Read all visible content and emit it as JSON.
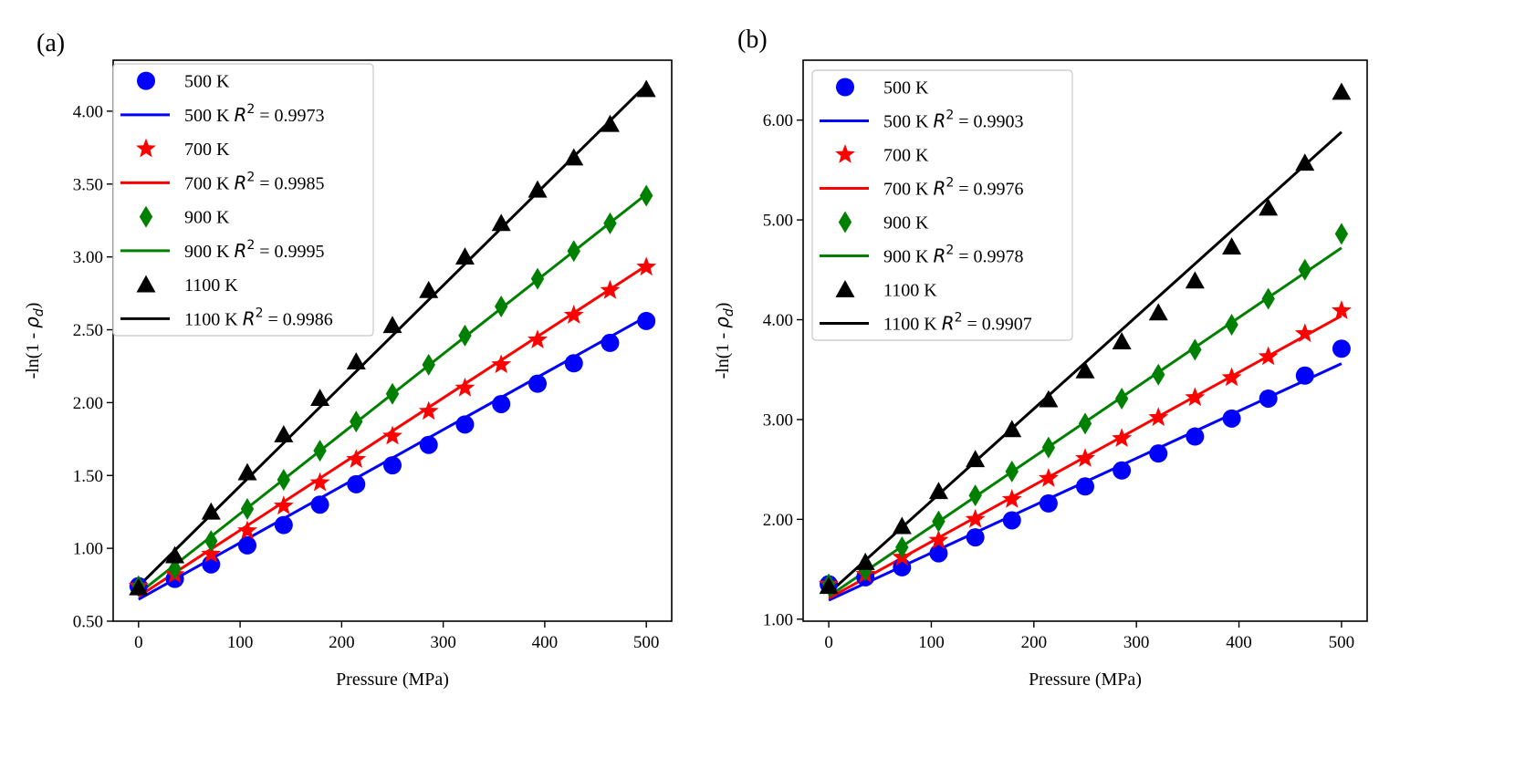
{
  "colors": {
    "500 K": "#0000ff",
    "700 K": "#ff0000",
    "900 K": "#008000",
    "1100 K": "#000000"
  },
  "chart_data": [
    {
      "type": "scatter",
      "panel_label": "(a)",
      "xlabel": "Pressure (MPa)",
      "ylabel": "-ln(1 - ρd)",
      "ylabel_main": "-ln(1 - ",
      "ylabel_rho": "ρ",
      "ylabel_sub": "d",
      "ylabel_close": ")",
      "xlim": [
        -25,
        525
      ],
      "ylim": [
        0.5,
        4.35
      ],
      "xticks": [
        0,
        100,
        200,
        300,
        400,
        500
      ],
      "xtick_labels": [
        "0",
        "100",
        "200",
        "300",
        "400",
        "500"
      ],
      "yticks": [
        0.5,
        1.0,
        1.5,
        2.0,
        2.5,
        3.0,
        3.5,
        4.0
      ],
      "ytick_labels": [
        "0.50",
        "1.00",
        "1.50",
        "2.00",
        "2.50",
        "3.00",
        "3.50",
        "4.00"
      ],
      "legend_position": "upper-left",
      "x": [
        0,
        35.7,
        71.4,
        107.1,
        142.9,
        178.6,
        214.3,
        250,
        285.7,
        321.4,
        357.1,
        392.9,
        428.6,
        464.3,
        500
      ],
      "series": [
        {
          "name": "500 K",
          "marker": "circle",
          "fit_label_prefix": "500 K ",
          "r2_text": " = 0.9973",
          "values": [
            0.74,
            0.79,
            0.89,
            1.02,
            1.16,
            1.3,
            1.44,
            1.57,
            1.71,
            1.85,
            1.99,
            2.13,
            2.27,
            2.41,
            2.56
          ],
          "fit_line": [
            [
              0,
              0.65
            ],
            [
              500,
              2.59
            ]
          ]
        },
        {
          "name": "700 K",
          "marker": "star",
          "fit_label_prefix": "700 K ",
          "r2_text": " = 0.9985",
          "values": [
            0.74,
            0.82,
            0.96,
            1.12,
            1.29,
            1.45,
            1.61,
            1.77,
            1.94,
            2.1,
            2.26,
            2.43,
            2.6,
            2.77,
            2.93
          ],
          "fit_line": [
            [
              0,
              0.67
            ],
            [
              500,
              2.94
            ]
          ]
        },
        {
          "name": "900 K",
          "marker": "diamond",
          "fit_label_prefix": "900 K ",
          "r2_text": " = 0.9995",
          "values": [
            0.74,
            0.86,
            1.05,
            1.27,
            1.47,
            1.67,
            1.87,
            2.06,
            2.26,
            2.46,
            2.66,
            2.85,
            3.04,
            3.23,
            3.42
          ],
          "fit_line": [
            [
              0,
              0.69
            ],
            [
              500,
              3.43
            ]
          ]
        },
        {
          "name": "1100 K",
          "marker": "triangle",
          "fit_label_prefix": "1100 K ",
          "r2_text": " = 0.9986",
          "values": [
            0.73,
            0.95,
            1.25,
            1.52,
            1.78,
            2.03,
            2.28,
            2.53,
            2.77,
            3.0,
            3.23,
            3.46,
            3.68,
            3.91,
            4.15
          ],
          "fit_line": [
            [
              0,
              0.74
            ],
            [
              500,
              4.18
            ]
          ]
        }
      ]
    },
    {
      "type": "scatter",
      "panel_label": "(b)",
      "xlabel": "Pressure (MPa)",
      "ylabel": "-ln(1 - ρd)",
      "ylabel_main": "-ln(1 - ",
      "ylabel_rho": "ρ",
      "ylabel_sub": "d",
      "ylabel_close": ")",
      "xlim": [
        -25,
        525
      ],
      "ylim": [
        0.98,
        6.6
      ],
      "xticks": [
        0,
        100,
        200,
        300,
        400,
        500
      ],
      "xtick_labels": [
        "0",
        "100",
        "200",
        "300",
        "400",
        "500"
      ],
      "yticks": [
        1.0,
        2.0,
        3.0,
        4.0,
        5.0,
        6.0
      ],
      "ytick_labels": [
        "1.00",
        "2.00",
        "3.00",
        "4.00",
        "5.00",
        "6.00"
      ],
      "legend_position": "upper-left",
      "x": [
        0,
        35.7,
        71.4,
        107.1,
        142.9,
        178.6,
        214.3,
        250,
        285.7,
        321.4,
        357.1,
        392.9,
        428.6,
        464.3,
        500
      ],
      "series": [
        {
          "name": "500 K",
          "marker": "circle",
          "fit_label_prefix": "500 K ",
          "r2_text": " = 0.9903",
          "values": [
            1.35,
            1.42,
            1.52,
            1.66,
            1.82,
            1.99,
            2.16,
            2.33,
            2.49,
            2.66,
            2.83,
            3.01,
            3.21,
            3.44,
            3.71
          ],
          "fit_line": [
            [
              0,
              1.19
            ],
            [
              500,
              3.56
            ]
          ]
        },
        {
          "name": "700 K",
          "marker": "star",
          "fit_label_prefix": "700 K ",
          "r2_text": " = 0.9976",
          "values": [
            1.35,
            1.45,
            1.62,
            1.79,
            2.0,
            2.2,
            2.41,
            2.61,
            2.81,
            3.02,
            3.22,
            3.42,
            3.63,
            3.86,
            4.09
          ],
          "fit_line": [
            [
              0,
              1.21
            ],
            [
              500,
              4.04
            ]
          ]
        },
        {
          "name": "900 K",
          "marker": "diamond",
          "fit_label_prefix": "900 K ",
          "r2_text": " = 0.9978",
          "values": [
            1.35,
            1.49,
            1.72,
            1.98,
            2.24,
            2.48,
            2.72,
            2.96,
            3.21,
            3.45,
            3.7,
            3.95,
            4.21,
            4.5,
            4.86
          ],
          "fit_line": [
            [
              0,
              1.23
            ],
            [
              500,
              4.72
            ]
          ]
        },
        {
          "name": "1100 K",
          "marker": "triangle",
          "fit_label_prefix": "1100 K ",
          "r2_text": " = 0.9907",
          "values": [
            1.33,
            1.57,
            1.93,
            2.28,
            2.6,
            2.9,
            3.2,
            3.49,
            3.78,
            4.07,
            4.39,
            4.73,
            5.12,
            5.57,
            6.28
          ],
          "fit_line": [
            [
              0,
              1.26
            ],
            [
              500,
              5.88
            ]
          ]
        }
      ]
    }
  ]
}
